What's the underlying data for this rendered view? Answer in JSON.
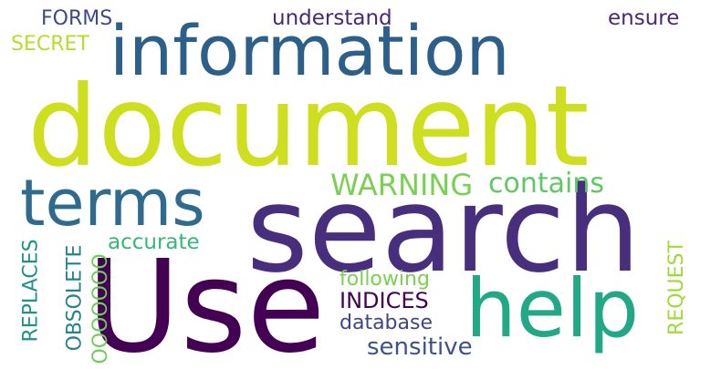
{
  "words": [
    {
      "text": "document",
      "color": "#cddf1f"
    },
    {
      "text": "search",
      "color": "#472f7d"
    },
    {
      "text": "Use",
      "color": "#440154"
    },
    {
      "text": "information",
      "color": "#2c5f8a"
    },
    {
      "text": "help",
      "color": "#22a884"
    },
    {
      "text": "terms",
      "color": "#2f6b8e"
    },
    {
      "text": "WARNING",
      "color": "#7ad151"
    },
    {
      "text": "contains",
      "color": "#5ec962"
    },
    {
      "text": "sensitive",
      "color": "#3b528b"
    },
    {
      "text": "database",
      "color": "#414487"
    },
    {
      "text": "INDICES",
      "color": "#440154"
    },
    {
      "text": "following",
      "color": "#7ad151"
    },
    {
      "text": "accurate",
      "color": "#35b779"
    },
    {
      "text": "understand",
      "color": "#482878"
    },
    {
      "text": "ensure",
      "color": "#482878"
    },
    {
      "text": "FORMS",
      "color": "#3e4989"
    },
    {
      "text": "SECRET",
      "color": "#b5de2b"
    },
    {
      "text": "REPLACES",
      "color": "#21918c"
    },
    {
      "text": "OBSOLETE",
      "color": "#26828e"
    },
    {
      "text": "OOOOOOO",
      "color": "#6ccd5a"
    },
    {
      "text": "REQUEST",
      "color": "#a0da39"
    }
  ]
}
